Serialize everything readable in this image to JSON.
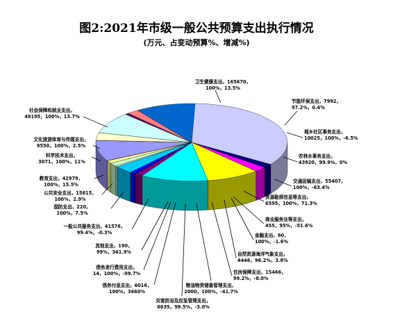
{
  "chart_data": {
    "type": "pie",
    "title": "图2:2021年市级一般公共预算支出执行情况",
    "subtitle": "(万元、占变动预算%、增减%)",
    "slices": [
      {
        "key": "health",
        "color": "#ccccff",
        "value": 165670,
        "label": [
          "卫生健康支出，165670，",
          "100%，13.5%"
        ]
      },
      {
        "key": "env",
        "color": "#000080",
        "value": 7992,
        "label": [
          "节能环保支出，7992，",
          "97.2%，0.4%"
        ]
      },
      {
        "key": "urban",
        "color": "#ff00ff",
        "value": 10025,
        "label": [
          "城乡社区事务支出，",
          "10025，100%，-6.5%"
        ]
      },
      {
        "key": "agri",
        "color": "#ffff00",
        "value": 43920,
        "label": [
          "农林水事务支出，",
          "43920，99.9%，0%"
        ]
      },
      {
        "key": "transport",
        "color": "#00ffff",
        "value": 55407,
        "label": [
          "交通运输支出，55407，",
          "100%，-63.4%"
        ]
      },
      {
        "key": "resource",
        "color": "#800080",
        "value": 6595,
        "label": [
          "资源勘探信息等支出，",
          "6595，100%，71.3%"
        ]
      },
      {
        "key": "commerce",
        "color": "#800000",
        "value": 455,
        "label": [
          "商业服务业等支出，",
          "455，95%，-51.6%"
        ]
      },
      {
        "key": "finance",
        "color": "#008080",
        "value": 60,
        "label": [
          "金融支出，60，",
          "100%，-1.6%"
        ]
      },
      {
        "key": "naturalres",
        "color": "#0000ff",
        "value": 4446,
        "label": [
          "自然资源海洋气象支出，",
          "4446，96.2%，3.8%"
        ]
      },
      {
        "key": "housing",
        "color": "#00ccff",
        "value": 15466,
        "label": [
          "住房保障支出，15466，",
          "99.2%，-8.0%"
        ]
      },
      {
        "key": "grain",
        "color": "#ccffff",
        "value": 2000,
        "label": [
          "粮油物资储备管理支出，",
          "2000，100%，-41.7%"
        ]
      },
      {
        "key": "disaster",
        "color": "#ccffcc",
        "value": 6635,
        "label": [
          "灾害防治及应急管理支出，",
          "6635，99.5%，-3.0%"
        ]
      },
      {
        "key": "debtint",
        "color": "#ffff99",
        "value": 6016,
        "label": [
          "债务付息支出，6016，",
          "100%，3660%"
        ]
      },
      {
        "key": "debtfee",
        "color": "#99ccff",
        "value": 14,
        "label": [
          "债务发行费用支出，",
          "14，100%，-99.7%"
        ]
      },
      {
        "key": "other",
        "color": "#ff99cc",
        "value": 190,
        "label": [
          "其他支出，190，",
          "99%，341.9%"
        ]
      },
      {
        "key": "general",
        "color": "#9999ff",
        "value": 41576,
        "label": [
          "一般公共服务支出，41576，",
          "99.4%，-0.3%"
        ]
      },
      {
        "key": "defense",
        "color": "#993366",
        "value": 220,
        "label": [
          "国防支出，220，",
          "100%，7.5%"
        ]
      },
      {
        "key": "security",
        "color": "#ffffcc",
        "value": 15615,
        "label": [
          "公共安全支出，15615，",
          "100%，2.9%"
        ]
      },
      {
        "key": "education",
        "color": "#ccffff",
        "value": 42979,
        "label": [
          "教育支出，42979，",
          "100%，15.5%"
        ]
      },
      {
        "key": "science",
        "color": "#660066",
        "value": 3071,
        "label": [
          "科学技术支出，",
          "3071，100%，11%"
        ]
      },
      {
        "key": "culture",
        "color": "#ff8080",
        "value": 9550,
        "label": [
          "文化旅游体育与传媒支出，",
          "9550，100%，2.5%"
        ]
      },
      {
        "key": "social",
        "color": "#0066cc",
        "value": 49195,
        "label": [
          "社会保障和就业支出，",
          "49195，100%，13.7%"
        ]
      }
    ]
  }
}
